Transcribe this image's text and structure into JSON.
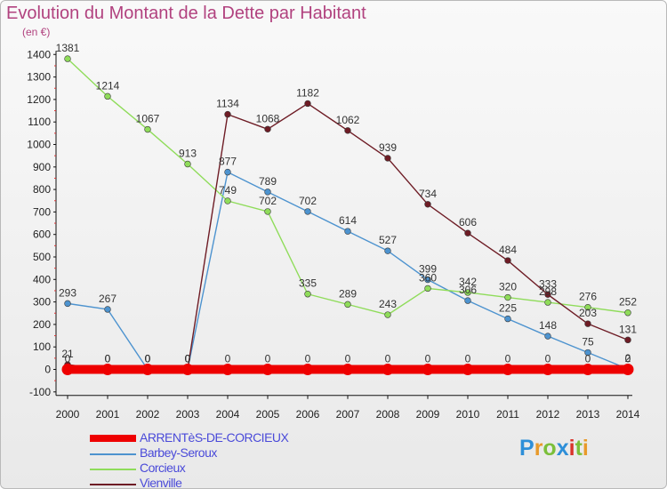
{
  "header": {
    "title": "Evolution du Montant de la Dette par Habitant",
    "unit": "(en €)"
  },
  "chart_data": {
    "type": "line",
    "title": "Evolution du Montant de la Dette par Habitant",
    "ylabel": "(en €)",
    "x": [
      2000,
      2001,
      2002,
      2003,
      2004,
      2005,
      2006,
      2007,
      2008,
      2009,
      2010,
      2011,
      2012,
      2013,
      2014
    ],
    "ylim": [
      -100,
      1400
    ],
    "yticks": [
      -100,
      0,
      100,
      200,
      300,
      400,
      500,
      600,
      700,
      800,
      900,
      1000,
      1100,
      1200,
      1300,
      1400
    ],
    "grid": false,
    "legend": "bottom-left",
    "series": [
      {
        "name": "ARRENTèS-DE-CORCIEUX",
        "color": "#ee0000",
        "values": [
          0,
          0,
          0,
          0,
          0,
          0,
          0,
          0,
          0,
          0,
          0,
          0,
          0,
          0,
          0
        ]
      },
      {
        "name": "Barbey-Seroux",
        "color": "#4d93cf",
        "values": [
          293,
          267,
          0,
          0,
          877,
          789,
          702,
          614,
          527,
          399,
          306,
          225,
          148,
          75,
          2
        ]
      },
      {
        "name": "Corcieux",
        "color": "#8fdc5a",
        "values": [
          1381,
          1214,
          1067,
          913,
          749,
          702,
          335,
          289,
          243,
          360,
          342,
          320,
          298,
          276,
          252
        ]
      },
      {
        "name": "Vienville",
        "color": "#6e1c25",
        "values": [
          21,
          0,
          0,
          0,
          1134,
          1068,
          1182,
          1062,
          939,
          734,
          606,
          484,
          333,
          203,
          131
        ]
      }
    ]
  },
  "legend": {
    "items": [
      {
        "label": "ARRENTèS-DE-CORCIEUX",
        "color": "#ee0000"
      },
      {
        "label": "Barbey-Seroux",
        "color": "#4d93cf"
      },
      {
        "label": "Corcieux",
        "color": "#8fdc5a"
      },
      {
        "label": "Vienville",
        "color": "#6e1c25"
      }
    ]
  },
  "logo": {
    "letters": [
      "P",
      "r",
      "o",
      "x",
      "i",
      "t",
      "i"
    ],
    "colors": [
      "#2e8fd8",
      "#e89a2a",
      "#7bbf3a",
      "#2e8fd8",
      "#d9342b",
      "#7bbf3a",
      "#e89a2a"
    ]
  }
}
